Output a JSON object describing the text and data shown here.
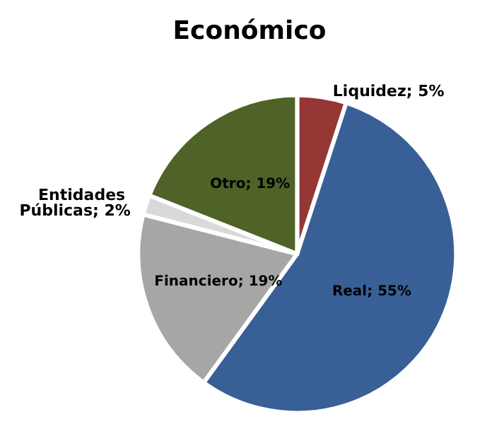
{
  "chart_data": {
    "type": "pie",
    "title": "Económico",
    "categories": [
      "Liquidez",
      "Real",
      "Financiero",
      "Entidades Públicas",
      "Otro"
    ],
    "values": [
      5,
      55,
      19,
      2,
      19
    ],
    "value_labels": [
      "5%",
      "55%",
      "19%",
      "2%",
      "19%"
    ],
    "colors": [
      "#953735",
      "#386096",
      "#a6a6a6",
      "#d9d9d9",
      "#4f6228"
    ],
    "legend": false
  }
}
